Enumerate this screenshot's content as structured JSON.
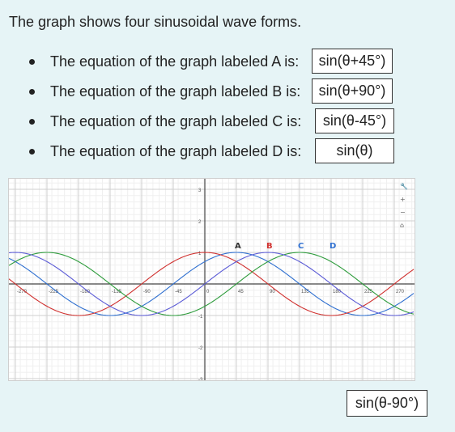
{
  "intro": "The graph shows four sinusoidal wave forms.",
  "questions": [
    {
      "text": "The equation of the graph labeled A is:",
      "answer": "sin(θ+45°)"
    },
    {
      "text": "The equation of the graph labeled B is:",
      "answer": "sin(θ+90°)"
    },
    {
      "text": "The equation of the graph labeled C is:",
      "answer": "sin(θ-45°)"
    },
    {
      "text": "The equation of the graph labeled D is:",
      "answer": "sin(θ)"
    }
  ],
  "graph": {
    "x_ticks": [
      "-270",
      "-225",
      "-180",
      "-135",
      "-90",
      "-45",
      "0",
      "45",
      "90",
      "135",
      "180",
      "225",
      "270"
    ],
    "y_ticks": [
      "3",
      "2",
      "1",
      "-1",
      "-2",
      "-3"
    ],
    "curve_labels": [
      "A",
      "B",
      "C",
      "D"
    ],
    "colors": {
      "A": "#2e6fd0",
      "B": "#d0302e",
      "C": "#2e9c3c",
      "D": "#5b5bd6"
    },
    "tools": [
      "wrench-icon",
      "zoom-in-icon",
      "zoom-out-icon",
      "home-icon"
    ]
  },
  "option": "sin(θ-90°)"
}
